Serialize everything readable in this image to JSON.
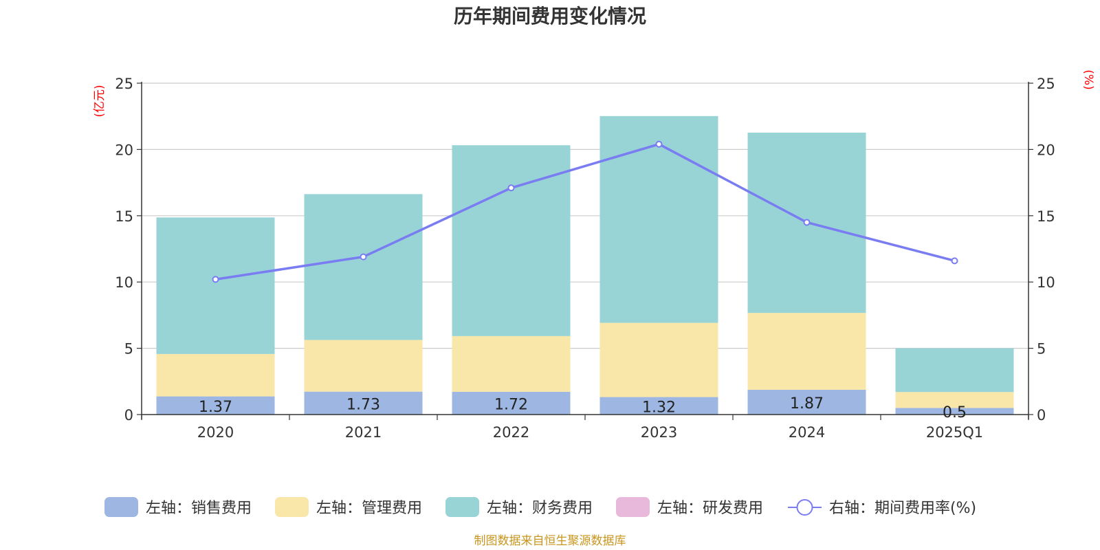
{
  "chart_data": {
    "type": "bar",
    "title": "历年期间费用变化情况",
    "categories": [
      "2020",
      "2021",
      "2022",
      "2023",
      "2024",
      "2025Q1"
    ],
    "left_axis": {
      "unit": "(亿元)",
      "ylim": [
        0,
        25
      ],
      "ticks": [
        "0",
        "5",
        "10",
        "15",
        "20",
        "25"
      ]
    },
    "right_axis": {
      "unit": "(%)",
      "ylim": [
        0,
        25
      ],
      "ticks": [
        "0",
        "5",
        "10",
        "15",
        "20",
        "25"
      ]
    },
    "grid": true,
    "legend_position": "bottom",
    "series": [
      {
        "name": "左轴：销售费用",
        "type": "bar",
        "axis": "left",
        "color": "#9db6e2",
        "values": [
          1.37,
          1.73,
          1.72,
          1.32,
          1.87,
          0.5
        ],
        "labels": [
          "1.37",
          "1.73",
          "1.72",
          "1.32",
          "1.87",
          "0.5"
        ]
      },
      {
        "name": "左轴：管理费用",
        "type": "bar",
        "axis": "left",
        "color": "#f8e7a9",
        "values": [
          3.2,
          3.9,
          4.2,
          5.6,
          5.8,
          1.2
        ]
      },
      {
        "name": "左轴：财务费用",
        "type": "bar",
        "axis": "left",
        "color": "#98d4d5",
        "values": [
          10.3,
          11.0,
          14.4,
          15.6,
          13.6,
          3.3
        ]
      },
      {
        "name": "左轴：研发费用",
        "type": "bar",
        "axis": "left",
        "color": "#e8b9db",
        "values": [
          0,
          0,
          0,
          0,
          0,
          0
        ]
      },
      {
        "name": "右轴：期间费用率(%)",
        "type": "line",
        "axis": "right",
        "color": "#7a7cf2",
        "values": [
          10.2,
          11.9,
          17.1,
          20.4,
          14.5,
          11.6
        ]
      }
    ],
    "source": "制图数据来自恒生聚源数据库"
  }
}
